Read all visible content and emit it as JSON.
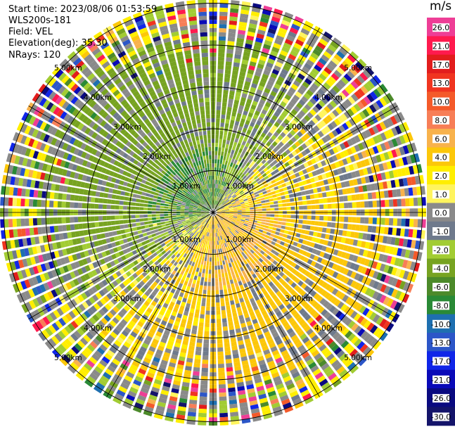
{
  "header": {
    "start_time": "Start time: 2023/08/06 01:53:59",
    "station": "WLS200s-181",
    "field": "Field: VEL",
    "elevation": "Elevation(deg): 35.30",
    "nrays": "NRays: 120"
  },
  "chart_data": {
    "type": "polar-ppi",
    "field": "VEL",
    "unit": "m/s",
    "n_rays": 120,
    "range_rings_km": [
      1,
      2,
      3,
      4,
      5
    ],
    "ring_labels": [
      "1.00km",
      "2.00km",
      "3.00km",
      "4.00km",
      "5.00km"
    ],
    "spokes_deg": [
      0,
      30,
      60,
      90,
      120,
      150,
      180,
      210,
      240,
      270,
      300,
      330
    ],
    "colorbar": {
      "tick_labels": [
        "26.0",
        "21.0",
        "17.0",
        "13.0",
        "10.0",
        "8.0",
        "6.0",
        "4.0",
        "2.0",
        "1.0",
        "0.0",
        "-1.0",
        "-2.0",
        "-4.0",
        "-6.0",
        "-8.0",
        "-10.0",
        "-13.0",
        "-17.0",
        "-21.0",
        "-26.0",
        "-30.0"
      ],
      "colors": [
        "#ee3e96",
        "#ff1a4e",
        "#e21d1d",
        "#f03520",
        "#f45a2a",
        "#f77e57",
        "#f8b24c",
        "#fcc70a",
        "#ffee00",
        "#fff45e",
        "#8a8a8a",
        "#6f7a8c",
        "#a2cc33",
        "#77a321",
        "#4c8a2a",
        "#2a8a36",
        "#1e6fb0",
        "#2c56c8",
        "#1026e8",
        "#0a0ab8",
        "#0a0a80",
        "#14146a"
      ]
    },
    "velocity_pattern": "receding (positive, yellow/orange) to south-east, approaching (negative, green) to north-west; noisy speckle at far ranges"
  }
}
